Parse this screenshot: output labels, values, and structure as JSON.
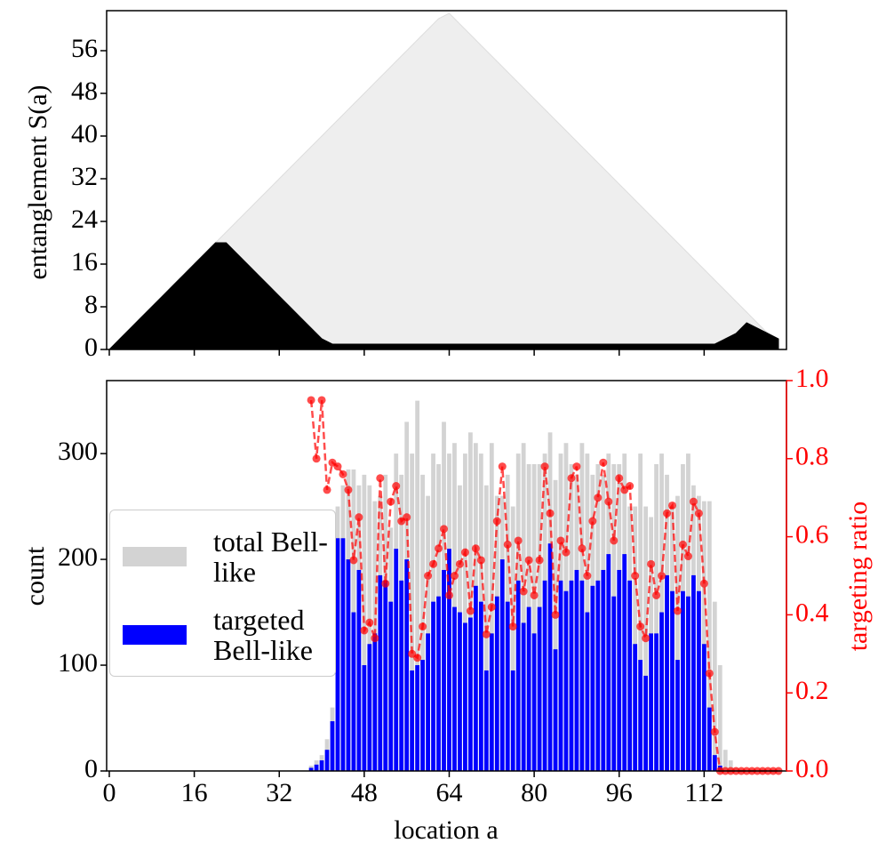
{
  "chart_data": [
    {
      "type": "area",
      "ylabel": "entanglement S(a)",
      "x": [
        0,
        2,
        4,
        6,
        8,
        10,
        12,
        14,
        16,
        18,
        20,
        22,
        24,
        26,
        28,
        30,
        32,
        34,
        36,
        38,
        40,
        42,
        44,
        46,
        48,
        50,
        52,
        54,
        56,
        58,
        60,
        62,
        64,
        66,
        68,
        70,
        72,
        74,
        76,
        78,
        80,
        82,
        84,
        86,
        88,
        90,
        92,
        94,
        96,
        98,
        100,
        102,
        104,
        106,
        108,
        110,
        112,
        114,
        116,
        118,
        120,
        122,
        124,
        126
      ],
      "series": [
        {
          "color": "#eeeeee",
          "values": [
            0,
            2,
            4,
            6,
            8,
            10,
            12,
            14,
            16,
            18,
            20,
            22,
            24,
            26,
            28,
            30,
            32,
            34,
            36,
            38,
            40,
            42,
            44,
            46,
            48,
            50,
            52,
            54,
            56,
            58,
            60,
            62,
            63,
            61,
            59,
            57,
            55,
            53,
            51,
            49,
            47,
            45,
            43,
            41,
            39,
            37,
            35,
            33,
            31,
            29,
            27,
            25,
            23,
            21,
            19,
            17,
            15,
            13,
            11,
            9,
            7,
            5,
            3,
            1
          ]
        },
        {
          "color": "#000000",
          "values": [
            0,
            2,
            4,
            6,
            8,
            10,
            12,
            14,
            16,
            18,
            20,
            20,
            18,
            16,
            14,
            12,
            10,
            8,
            6,
            4,
            2,
            1,
            1,
            1,
            1,
            1,
            1,
            1,
            1,
            1,
            1,
            1,
            1,
            1,
            1,
            1,
            1,
            1,
            1,
            1,
            1,
            1,
            1,
            1,
            1,
            1,
            1,
            1,
            1,
            1,
            1,
            1,
            1,
            1,
            1,
            1,
            1,
            1,
            2,
            3,
            5,
            4,
            3,
            2
          ]
        }
      ],
      "xlim": [
        -0.5,
        127.5
      ],
      "xticks": [
        0,
        16,
        32,
        48,
        64,
        80,
        96,
        112
      ],
      "ylim": [
        0,
        63.5
      ],
      "yticks": [
        0,
        8,
        16,
        24,
        32,
        40,
        48,
        56
      ]
    },
    {
      "type": "bar",
      "xlabel": "location a",
      "ylabel": "count",
      "y2label": "targeting ratio",
      "x": [
        38,
        39,
        40,
        41,
        42,
        43,
        44,
        45,
        46,
        47,
        48,
        49,
        50,
        51,
        52,
        53,
        54,
        55,
        56,
        57,
        58,
        59,
        60,
        61,
        62,
        63,
        64,
        65,
        66,
        67,
        68,
        69,
        70,
        71,
        72,
        73,
        74,
        75,
        76,
        77,
        78,
        79,
        80,
        81,
        82,
        83,
        84,
        85,
        86,
        87,
        88,
        89,
        90,
        91,
        92,
        93,
        94,
        95,
        96,
        97,
        98,
        99,
        100,
        101,
        102,
        103,
        104,
        105,
        106,
        107,
        108,
        109,
        110,
        111,
        112,
        113,
        114,
        115,
        116,
        117,
        118,
        119,
        120,
        121,
        122,
        123,
        124,
        125,
        126
      ],
      "series": [
        {
          "name": "total Bell-like",
          "color": "#d3d3d3",
          "values": [
            5,
            10,
            15,
            30,
            60,
            250,
            270,
            285,
            285,
            270,
            280,
            270,
            255,
            260,
            280,
            230,
            300,
            280,
            330,
            300,
            350,
            280,
            260,
            300,
            290,
            330,
            300,
            310,
            270,
            300,
            320,
            310,
            300,
            270,
            310,
            260,
            260,
            280,
            250,
            300,
            310,
            290,
            290,
            290,
            300,
            320,
            275,
            300,
            310,
            290,
            280,
            310,
            300,
            280,
            290,
            280,
            300,
            290,
            290,
            300,
            250,
            250,
            300,
            250,
            240,
            290,
            300,
            280,
            250,
            260,
            290,
            300,
            270,
            260,
            255,
            255,
            160,
            100,
            20,
            10,
            3,
            0,
            0,
            0,
            0,
            0,
            0,
            0,
            0
          ]
        },
        {
          "name": "targeted Bell-like",
          "color": "#0000ff",
          "values": [
            3,
            6,
            10,
            20,
            47,
            220,
            220,
            200,
            150,
            190,
            100,
            120,
            130,
            185,
            180,
            160,
            210,
            180,
            200,
            95,
            100,
            105,
            130,
            160,
            165,
            190,
            210,
            155,
            150,
            140,
            145,
            175,
            160,
            95,
            130,
            165,
            200,
            160,
            95,
            180,
            140,
            155,
            130,
            155,
            180,
            215,
            115,
            180,
            170,
            180,
            190,
            180,
            150,
            175,
            180,
            190,
            205,
            165,
            190,
            205,
            180,
            120,
            105,
            90,
            130,
            130,
            150,
            185,
            170,
            105,
            170,
            165,
            185,
            170,
            120,
            60,
            15,
            5,
            0,
            0,
            0,
            0,
            0,
            0,
            0,
            0,
            0,
            0,
            0
          ]
        },
        {
          "color": "#ff0000",
          "axis": "y2",
          "values": [
            0.95,
            0.8,
            0.95,
            0.72,
            0.79,
            0.78,
            0.76,
            0.72,
            0.54,
            0.65,
            0.36,
            0.38,
            0.34,
            0.75,
            0.48,
            0.69,
            0.73,
            0.64,
            0.65,
            0.3,
            0.29,
            0.37,
            0.5,
            0.53,
            0.57,
            0.62,
            0.45,
            0.5,
            0.53,
            0.56,
            0.41,
            0.57,
            0.54,
            0.35,
            0.42,
            0.64,
            0.78,
            0.58,
            0.37,
            0.59,
            0.46,
            0.54,
            0.45,
            0.54,
            0.78,
            0.66,
            0.4,
            0.59,
            0.56,
            0.75,
            0.78,
            0.57,
            0.5,
            0.64,
            0.7,
            0.79,
            0.69,
            0.59,
            0.75,
            0.72,
            0.73,
            0.5,
            0.37,
            0.34,
            0.53,
            0.45,
            0.5,
            0.66,
            0.68,
            0.41,
            0.58,
            0.55,
            0.69,
            0.66,
            0.48,
            0.25,
            0.1,
            0,
            0,
            0,
            0,
            0,
            0,
            0,
            0,
            0,
            0,
            0,
            0
          ]
        }
      ],
      "xlim": [
        -0.5,
        127.5
      ],
      "xticks": [
        0,
        16,
        32,
        48,
        64,
        80,
        96,
        112
      ],
      "ylim": [
        0,
        369
      ],
      "yticks": [
        0,
        100,
        200,
        300
      ],
      "y2lim": [
        0,
        1
      ],
      "y2ticks": [
        {
          "value": 0,
          "label": "0.0"
        },
        {
          "value": 0.2,
          "label": "0.2"
        },
        {
          "value": 0.4,
          "label": "0.4"
        },
        {
          "value": 0.6,
          "label": "0.6"
        },
        {
          "value": 0.8,
          "label": "0.8"
        },
        {
          "value": 1,
          "label": "1.0"
        }
      ],
      "legend": "center left"
    }
  ]
}
